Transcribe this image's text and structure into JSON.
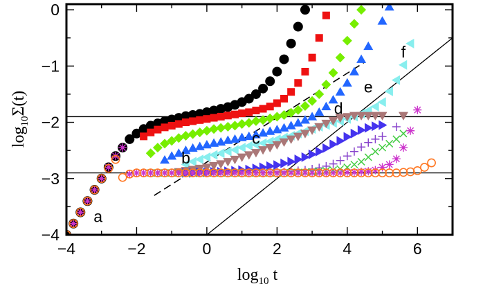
{
  "chart_data": {
    "type": "scatter",
    "title": "",
    "xlabel": {
      "base": "log",
      "sub": "10",
      "tail": " t"
    },
    "ylabel": {
      "base": "log",
      "sub": "10",
      "tail": "Σ(t)"
    },
    "xlim": [
      -4,
      7
    ],
    "ylim": [
      -4,
      0.1
    ],
    "grid": false,
    "xticks": [
      {
        "value": -4,
        "label": "−4"
      },
      {
        "value": -2,
        "label": "−2"
      },
      {
        "value": 0,
        "label": "0"
      },
      {
        "value": 2,
        "label": "2"
      },
      {
        "value": 4,
        "label": "4"
      },
      {
        "value": 6,
        "label": "6"
      }
    ],
    "yticks": [
      {
        "value": 0,
        "label": "0"
      },
      {
        "value": -1,
        "label": "−1"
      },
      {
        "value": -2,
        "label": "−2"
      },
      {
        "value": -3,
        "label": "−3"
      },
      {
        "value": -4,
        "label": "−4"
      }
    ],
    "x_minor_step": 1,
    "y_minor_step": 0.5,
    "colors": {
      "circle_black": "#000000",
      "square_red": "#ee1111",
      "diamond_green": "#77ee00",
      "triangle_up_blue": "#2266ff",
      "triangle_left_cyan": "#88eeee",
      "triangle_down_mauve": "#aa7777",
      "triangle_right_blue": "#4433ee",
      "plus_purple": "#8844cc",
      "cross_green": "#44cc44",
      "star_magenta": "#cc33cc",
      "circle_open_orange": "#ff7722"
    },
    "series": [
      {
        "name": "black-circles",
        "marker": "circle",
        "color": "#000000",
        "x": [
          -4,
          -3.8,
          -3.6,
          -3.4,
          -3.2,
          -3,
          -2.8,
          -2.6,
          -2.4,
          -2.2,
          -2,
          -1.8,
          -1.6,
          -1.4,
          -1.2,
          -1,
          -0.8,
          -0.6,
          -0.4,
          -0.2,
          0,
          0.2,
          0.4,
          0.6,
          0.8,
          1,
          1.2,
          1.4,
          1.6,
          1.8,
          2,
          2.2,
          2.4,
          2.6,
          2.8
        ],
        "y": [
          -4,
          -3.8,
          -3.6,
          -3.4,
          -3.2,
          -3,
          -2.8,
          -2.6,
          -2.45,
          -2.3,
          -2.2,
          -2.12,
          -2.06,
          -2.02,
          -1.98,
          -1.95,
          -1.92,
          -1.89,
          -1.87,
          -1.85,
          -1.82,
          -1.79,
          -1.76,
          -1.73,
          -1.69,
          -1.64,
          -1.58,
          -1.5,
          -1.4,
          -1.27,
          -1.1,
          -0.88,
          -0.6,
          -0.3,
          0
        ]
      },
      {
        "name": "red-squares",
        "marker": "square",
        "color": "#ee1111",
        "x": [
          -1.8,
          -1.6,
          -1.4,
          -1.2,
          -1,
          -0.8,
          -0.6,
          -0.4,
          -0.2,
          0,
          0.2,
          0.4,
          0.6,
          0.8,
          1,
          1.2,
          1.4,
          1.6,
          1.8,
          2,
          2.2,
          2.4,
          2.6,
          2.8,
          3,
          3.2,
          3.4
        ],
        "y": [
          -2.25,
          -2.18,
          -2.13,
          -2.09,
          -2.06,
          -2.03,
          -2,
          -1.98,
          -1.96,
          -1.94,
          -1.92,
          -1.9,
          -1.88,
          -1.86,
          -1.84,
          -1.82,
          -1.79,
          -1.76,
          -1.72,
          -1.66,
          -1.58,
          -1.46,
          -1.3,
          -1.1,
          -0.85,
          -0.5,
          -0.1
        ]
      },
      {
        "name": "green-diamonds",
        "marker": "diamond",
        "color": "#77ee00",
        "x": [
          -1.6,
          -1.4,
          -1.2,
          -1,
          -0.8,
          -0.6,
          -0.4,
          -0.2,
          0,
          0.2,
          0.4,
          0.6,
          0.8,
          1,
          1.2,
          1.4,
          1.6,
          1.8,
          2,
          2.2,
          2.4,
          2.6,
          2.8,
          3,
          3.2,
          3.4,
          3.6,
          3.8,
          4,
          4.2,
          4.4
        ],
        "y": [
          -2.55,
          -2.45,
          -2.38,
          -2.33,
          -2.28,
          -2.24,
          -2.21,
          -2.18,
          -2.15,
          -2.12,
          -2.1,
          -2.08,
          -2.06,
          -2.03,
          -2.01,
          -1.98,
          -1.96,
          -1.93,
          -1.9,
          -1.87,
          -1.83,
          -1.78,
          -1.71,
          -1.62,
          -1.5,
          -1.33,
          -1.12,
          -0.85,
          -0.55,
          -0.25,
          0
        ]
      },
      {
        "name": "blue-up-triangles",
        "marker": "triangle-up",
        "color": "#2266ff",
        "x": [
          -1.2,
          -1,
          -0.8,
          -0.6,
          -0.4,
          -0.2,
          0,
          0.2,
          0.4,
          0.6,
          0.8,
          1,
          1.2,
          1.4,
          1.6,
          1.8,
          2,
          2.2,
          2.4,
          2.6,
          2.8,
          3,
          3.2,
          3.4,
          3.6,
          3.8,
          4,
          4.2,
          4.4,
          4.6,
          5,
          5.2
        ],
        "y": [
          -2.67,
          -2.6,
          -2.55,
          -2.5,
          -2.46,
          -2.43,
          -2.4,
          -2.37,
          -2.35,
          -2.32,
          -2.3,
          -2.27,
          -2.25,
          -2.22,
          -2.19,
          -2.16,
          -2.13,
          -2.1,
          -2.06,
          -2.01,
          -1.96,
          -1.9,
          -1.82,
          -1.72,
          -1.6,
          -1.46,
          -1.3,
          -1.1,
          -0.88,
          -0.65,
          -0.2,
          0.05
        ]
      },
      {
        "name": "cyan-left-triangles",
        "marker": "triangle-left",
        "color": "#88eeee",
        "x": [
          -0.6,
          -0.4,
          -0.2,
          0,
          0.2,
          0.4,
          0.6,
          0.8,
          1,
          1.2,
          1.4,
          1.6,
          1.8,
          2,
          2.2,
          2.4,
          2.6,
          2.8,
          3,
          3.2,
          3.4,
          3.6,
          3.8,
          4,
          4.2,
          4.4,
          4.6,
          4.8,
          5,
          5.2,
          5.4,
          5.6,
          5.8
        ],
        "y": [
          -2.75,
          -2.7,
          -2.66,
          -2.62,
          -2.58,
          -2.55,
          -2.52,
          -2.49,
          -2.45,
          -2.42,
          -2.4,
          -2.37,
          -2.34,
          -2.3,
          -2.27,
          -2.24,
          -2.2,
          -2.16,
          -2.12,
          -2.08,
          -2.05,
          -2.01,
          -1.98,
          -1.94,
          -1.9,
          -1.85,
          -1.79,
          -1.72,
          -1.64,
          -1.45,
          -1.25,
          -0.98,
          -0.6
        ]
      },
      {
        "name": "mauve-down-triangles",
        "marker": "triangle-down",
        "color": "#aa7777",
        "x": [
          -0.8,
          -0.6,
          -0.4,
          -0.2,
          0,
          0.2,
          0.4,
          0.6,
          0.8,
          1,
          1.2,
          1.4,
          1.6,
          1.8,
          2,
          2.2,
          2.4,
          2.6,
          2.8,
          3,
          3.2,
          3.4,
          3.6,
          3.8,
          4,
          4.2,
          4.4,
          4.6,
          4.8,
          5,
          5.6
        ],
        "y": [
          -2.88,
          -2.86,
          -2.84,
          -2.82,
          -2.8,
          -2.77,
          -2.74,
          -2.7,
          -2.66,
          -2.62,
          -2.58,
          -2.54,
          -2.49,
          -2.45,
          -2.4,
          -2.35,
          -2.3,
          -2.25,
          -2.2,
          -2.14,
          -2.08,
          -2.02,
          -1.97,
          -1.92,
          -1.9,
          -1.88,
          -1.88,
          -1.88,
          -1.88,
          -1.88,
          -1.88
        ]
      },
      {
        "name": "blue-right-triangles",
        "marker": "triangle-right",
        "color": "#4433ee",
        "x": [
          -0.6,
          -0.4,
          -0.2,
          0,
          0.2,
          0.4,
          0.6,
          0.8,
          1,
          1.2,
          1.4,
          1.6,
          1.8,
          2,
          2.2,
          2.4,
          2.6,
          2.8,
          3,
          3.2,
          3.4,
          3.6,
          3.8,
          4,
          4.2,
          4.4,
          4.6,
          4.8,
          5
        ],
        "y": [
          -2.9,
          -2.9,
          -2.89,
          -2.89,
          -2.88,
          -2.88,
          -2.87,
          -2.86,
          -2.85,
          -2.84,
          -2.82,
          -2.8,
          -2.78,
          -2.76,
          -2.73,
          -2.7,
          -2.66,
          -2.62,
          -2.57,
          -2.52,
          -2.46,
          -2.39,
          -2.33,
          -2.26,
          -2.2,
          -2.14,
          -2.1,
          -2.07,
          -2.05
        ]
      },
      {
        "name": "purple-plus",
        "marker": "plus",
        "color": "#8844cc",
        "x": [
          -1.6,
          -1.4,
          -1.2,
          -1,
          -0.8,
          -0.6,
          -0.4,
          -0.2,
          0,
          0.2,
          0.4,
          0.6,
          0.8,
          1,
          1.2,
          1.4,
          1.6,
          1.8,
          2,
          2.2,
          2.4,
          2.6,
          2.8,
          3,
          3.2,
          3.4,
          3.6,
          3.8,
          4,
          4.2,
          4.4,
          4.6,
          4.8,
          5,
          5.4
        ],
        "y": [
          -2.9,
          -2.9,
          -2.9,
          -2.9,
          -2.9,
          -2.9,
          -2.9,
          -2.9,
          -2.9,
          -2.9,
          -2.9,
          -2.9,
          -2.9,
          -2.9,
          -2.89,
          -2.89,
          -2.89,
          -2.89,
          -2.88,
          -2.88,
          -2.87,
          -2.86,
          -2.85,
          -2.83,
          -2.81,
          -2.78,
          -2.74,
          -2.68,
          -2.6,
          -2.52,
          -2.44,
          -2.36,
          -2.3,
          -2.25,
          -2.08
        ]
      },
      {
        "name": "green-cross",
        "marker": "cross",
        "color": "#44cc44",
        "x": [
          -1.6,
          -1.4,
          -1.2,
          -1,
          -0.8,
          -0.6,
          -0.4,
          -0.2,
          0,
          0.2,
          0.4,
          0.6,
          0.8,
          1,
          1.2,
          1.4,
          1.6,
          1.8,
          2,
          2.2,
          2.4,
          2.6,
          2.8,
          3,
          3.2,
          3.4,
          3.6,
          3.8,
          4,
          4.2,
          4.4,
          4.6,
          4.8,
          5,
          5.2,
          5.4,
          5.6
        ],
        "y": [
          -2.9,
          -2.9,
          -2.9,
          -2.9,
          -2.9,
          -2.9,
          -2.9,
          -2.9,
          -2.9,
          -2.9,
          -2.9,
          -2.9,
          -2.9,
          -2.9,
          -2.9,
          -2.9,
          -2.9,
          -2.9,
          -2.9,
          -2.9,
          -2.89,
          -2.89,
          -2.89,
          -2.88,
          -2.87,
          -2.86,
          -2.85,
          -2.83,
          -2.8,
          -2.75,
          -2.7,
          -2.62,
          -2.52,
          -2.45,
          -2.38,
          -2.3,
          -2.2
        ]
      },
      {
        "name": "magenta-star",
        "marker": "star",
        "color": "#cc33cc",
        "x": [
          -3.8,
          -3.6,
          -3.4,
          -3.2,
          -3,
          -2.8,
          -2.6,
          -2.4,
          -2.2,
          -2,
          -1.8,
          -1.6,
          -1.4,
          -1.2,
          -1,
          -0.8,
          -0.6,
          -0.4,
          -0.2,
          0,
          0.2,
          0.4,
          0.6,
          0.8,
          1,
          1.2,
          1.4,
          1.6,
          1.8,
          2,
          2.2,
          2.4,
          2.6,
          2.8,
          3,
          3.2,
          3.4,
          3.6,
          3.8,
          4,
          4.2,
          4.4,
          4.6,
          4.8,
          5,
          5.2,
          5.4,
          5.6,
          5.8,
          6
        ],
        "y": [
          -3.8,
          -3.6,
          -3.4,
          -3.2,
          -3,
          -2.8,
          -2.6,
          -2.45,
          -2.92,
          -2.9,
          -2.9,
          -2.9,
          -2.9,
          -2.9,
          -2.9,
          -2.9,
          -2.9,
          -2.9,
          -2.9,
          -2.9,
          -2.9,
          -2.9,
          -2.9,
          -2.9,
          -2.9,
          -2.9,
          -2.9,
          -2.9,
          -2.9,
          -2.9,
          -2.9,
          -2.9,
          -2.9,
          -2.9,
          -2.9,
          -2.9,
          -2.9,
          -2.9,
          -2.9,
          -2.89,
          -2.89,
          -2.88,
          -2.87,
          -2.85,
          -2.8,
          -2.75,
          -2.65,
          -2.45,
          -2.15,
          -1.78
        ]
      },
      {
        "name": "orange-open-circles",
        "marker": "circle-open",
        "color": "#ff7722",
        "x": [
          -4,
          -3.8,
          -3.6,
          -3.4,
          -3.2,
          -3,
          -2.8,
          -2.6,
          -2.4,
          -2.2,
          -2,
          -1.8,
          -1.6,
          -1.4,
          -1.2,
          -1,
          -0.8,
          -0.6,
          -0.4,
          -0.2,
          0,
          0.2,
          0.4,
          0.6,
          0.8,
          1,
          1.2,
          1.4,
          1.6,
          1.8,
          2,
          2.2,
          2.4,
          2.6,
          2.8,
          3,
          3.2,
          3.4,
          3.6,
          3.8,
          4,
          4.2,
          4.4,
          4.6,
          4.8,
          5,
          5.2,
          5.4,
          5.6,
          5.8,
          6,
          6.2,
          6.4
        ],
        "y": [
          -4,
          -3.8,
          -3.6,
          -3.4,
          -3.2,
          -3,
          -2.82,
          -2.66,
          -2.98,
          -2.92,
          -2.9,
          -2.9,
          -2.9,
          -2.9,
          -2.9,
          -2.9,
          -2.9,
          -2.9,
          -2.9,
          -2.9,
          -2.9,
          -2.9,
          -2.9,
          -2.9,
          -2.9,
          -2.9,
          -2.9,
          -2.9,
          -2.9,
          -2.9,
          -2.9,
          -2.9,
          -2.9,
          -2.9,
          -2.9,
          -2.9,
          -2.9,
          -2.9,
          -2.9,
          -2.9,
          -2.9,
          -2.9,
          -2.9,
          -2.9,
          -2.9,
          -2.9,
          -2.9,
          -2.9,
          -2.89,
          -2.88,
          -2.86,
          -2.8,
          -2.72
        ]
      }
    ],
    "reference_lines": [
      {
        "name": "horizontal-line-upper",
        "style": "solid",
        "x": [
          -4,
          7
        ],
        "y": [
          -1.9,
          -1.9
        ]
      },
      {
        "name": "horizontal-line-lower",
        "style": "solid",
        "x": [
          -4,
          7
        ],
        "y": [
          -2.9,
          -2.9
        ]
      },
      {
        "name": "diagonal-solid-line",
        "style": "solid",
        "x": [
          0,
          7
        ],
        "y": [
          -4,
          -0.5
        ]
      },
      {
        "name": "dashed-slope-line",
        "style": "dashed",
        "x": [
          -1.5,
          4.5
        ],
        "y": [
          -3.3,
          -0.93
        ]
      }
    ],
    "annotations": [
      {
        "text": "a",
        "x": -3.1,
        "y": -3.77
      },
      {
        "text": "b",
        "x": -0.6,
        "y": -2.73
      },
      {
        "text": "c",
        "x": 1.4,
        "y": -2.38
      },
      {
        "text": "d",
        "x": 3.75,
        "y": -1.85
      },
      {
        "text": "e",
        "x": 4.6,
        "y": -1.47
      },
      {
        "text": "f",
        "x": 5.6,
        "y": -0.85
      }
    ]
  }
}
